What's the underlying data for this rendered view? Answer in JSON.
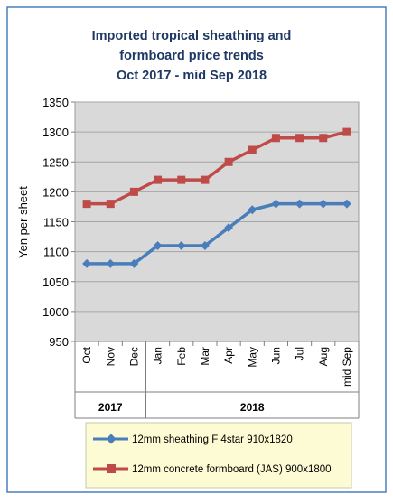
{
  "chart_data": {
    "type": "line",
    "title_lines": [
      "Imported tropical sheathing and",
      "formboard price trends",
      "Oct 2017 - mid Sep 2018"
    ],
    "ylabel": "Yen per sheet",
    "ylim": [
      950,
      1350
    ],
    "yticks": [
      950,
      1000,
      1050,
      1100,
      1150,
      1200,
      1250,
      1300,
      1350
    ],
    "categories": [
      "Oct",
      "Nov",
      "Dec",
      "Jan",
      "Feb",
      "Mar",
      "Apr",
      "May",
      "Jun",
      "Jul",
      "Aug",
      "mid Sep"
    ],
    "year_groups": [
      {
        "label": "2017",
        "count": 3
      },
      {
        "label": "2018",
        "count": 9
      }
    ],
    "grid": true,
    "legend_position": "bottom",
    "series": [
      {
        "name": "12mm sheathing F 4star 910x1820",
        "color": "#4a7ebb",
        "marker": "diamond",
        "values": [
          1080,
          1080,
          1080,
          1110,
          1110,
          1110,
          1140,
          1170,
          1180,
          1180,
          1180,
          1180
        ]
      },
      {
        "name": "12mm concrete formboard (JAS) 900x1800",
        "color": "#be4b48",
        "marker": "square",
        "values": [
          1180,
          1180,
          1200,
          1220,
          1220,
          1220,
          1250,
          1270,
          1290,
          1290,
          1290,
          1300
        ]
      }
    ],
    "colors": {
      "page_border": "#4a7ebb",
      "plot_background": "#d9d9d9",
      "title": "#1f3864",
      "legend_background": "#fdfbd3"
    }
  }
}
